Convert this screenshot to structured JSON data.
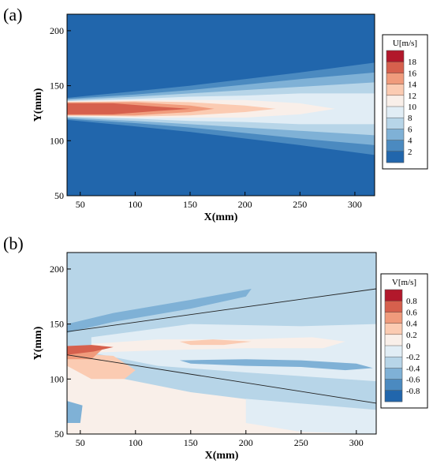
{
  "panels": [
    {
      "label": "(a)"
    },
    {
      "label": "(b)"
    }
  ],
  "chart_data": [
    {
      "type": "heatmap",
      "title": "",
      "xlabel": "X(mm)",
      "ylabel": "Y(mm)",
      "xlim": [
        38,
        318
      ],
      "ylim": [
        50,
        215
      ],
      "xticks": [
        50,
        100,
        150,
        200,
        250,
        300
      ],
      "yticks": [
        50,
        100,
        150,
        200
      ],
      "colorbar": {
        "title": "U[m/s]",
        "levels": [
          1,
          3,
          5,
          7,
          9,
          11,
          13,
          15,
          17,
          19
        ],
        "ticks": [
          18,
          16,
          14,
          12,
          10,
          8,
          6,
          4,
          2
        ],
        "colors": [
          "#2166ac",
          "#4b8ac0",
          "#7fb1d6",
          "#b7d5e8",
          "#e1edf5",
          "#f9efe9",
          "#fbcbb2",
          "#f09b7c",
          "#d6604d",
          "#b2182b"
        ]
      },
      "jet_centerline_y": 129,
      "contours": [
        {
          "value": 3,
          "x": [
            38,
            100,
            150,
            200,
            250,
            318
          ],
          "half_width": [
            10,
            16,
            21,
            27,
            33,
            42
          ]
        },
        {
          "value": 5,
          "x": [
            38,
            100,
            150,
            200,
            250,
            318
          ],
          "half_width": [
            9,
            13,
            17,
            22,
            27,
            33
          ]
        },
        {
          "value": 7,
          "x": [
            38,
            100,
            150,
            200,
            250,
            318
          ],
          "half_width": [
            8,
            11,
            14,
            17,
            20,
            24
          ]
        },
        {
          "value": 9,
          "x": [
            38,
            100,
            150,
            200,
            250,
            318
          ],
          "half_width": [
            7,
            9,
            11,
            12,
            14,
            14
          ]
        },
        {
          "value": 11,
          "x": [
            38,
            100,
            150,
            200,
            250,
            282
          ],
          "half_width": [
            7,
            8,
            8,
            8,
            5,
            0
          ]
        },
        {
          "value": 13,
          "x": [
            38,
            100,
            150,
            200,
            228
          ],
          "half_width": [
            6,
            7,
            6,
            3,
            0
          ]
        },
        {
          "value": 15,
          "x": [
            38,
            100,
            150,
            172
          ],
          "half_width": [
            6,
            6,
            3,
            0
          ]
        },
        {
          "value": 17,
          "x": [
            40,
            80,
            120,
            150
          ],
          "half_width": [
            5,
            5,
            2,
            0
          ]
        }
      ]
    },
    {
      "type": "heatmap",
      "title": "",
      "xlabel": "X(mm)",
      "ylabel": "Y(mm)",
      "xlim": [
        38,
        318
      ],
      "ylim": [
        50,
        215
      ],
      "xticks": [
        50,
        100,
        150,
        200,
        250,
        300
      ],
      "yticks": [
        50,
        100,
        150,
        200
      ],
      "colorbar": {
        "title": "V[m/s]",
        "levels": [
          -0.9,
          -0.7,
          -0.5,
          -0.3,
          -0.1,
          0.1,
          0.3,
          0.5,
          0.7,
          0.9
        ],
        "ticks": [
          0.8,
          0.6,
          0.4,
          0.2,
          0,
          -0.2,
          -0.4,
          -0.6,
          -0.8
        ],
        "colors": [
          "#2166ac",
          "#4b8ac0",
          "#7fb1d6",
          "#b7d5e8",
          "#e1edf5",
          "#f9efe9",
          "#fbcbb2",
          "#f09b7c",
          "#d6604d",
          "#b2182b"
        ]
      },
      "background_value": -0.2,
      "regions": [
        {
          "value": 0.2,
          "points": [
            [
              38,
              50
            ],
            [
              38,
              112
            ],
            [
              80,
              102
            ],
            [
              150,
              88
            ],
            [
              230,
              78
            ],
            [
              318,
              64
            ],
            [
              318,
              50
            ]
          ]
        },
        {
          "value": 0,
          "points": [
            [
              200,
              82
            ],
            [
              318,
              72
            ],
            [
              318,
              50
            ],
            [
              250,
              52
            ],
            [
              200,
              60
            ]
          ]
        },
        {
          "value": 0,
          "points": [
            [
              60,
              124
            ],
            [
              120,
              112
            ],
            [
              200,
              106
            ],
            [
              318,
              98
            ],
            [
              318,
              150
            ],
            [
              250,
              148
            ],
            [
              150,
              150
            ],
            [
              60,
              138
            ]
          ]
        },
        {
          "value": 0.2,
          "points": [
            [
              60,
              132
            ],
            [
              120,
              136
            ],
            [
              200,
              136
            ],
            [
              260,
              138
            ],
            [
              290,
              134
            ],
            [
              270,
              128
            ],
            [
              200,
              128
            ],
            [
              120,
              126
            ],
            [
              60,
              124
            ]
          ]
        },
        {
          "value": 0.4,
          "points": [
            [
              38,
              112
            ],
            [
              38,
              124
            ],
            [
              80,
              121
            ],
            [
              100,
              108
            ],
            [
              90,
              100
            ],
            [
              60,
              100
            ]
          ]
        },
        {
          "value": 0.4,
          "points": [
            [
              140,
              134
            ],
            [
              170,
              136
            ],
            [
              205,
              134
            ],
            [
              180,
              131
            ],
            [
              150,
              131
            ]
          ]
        },
        {
          "value": 0.6,
          "points": [
            [
              38,
              118
            ],
            [
              38,
              128
            ],
            [
              70,
              127
            ],
            [
              60,
              118
            ]
          ]
        },
        {
          "value": 0.8,
          "points": [
            [
              38,
              122
            ],
            [
              38,
              130
            ],
            [
              60,
              131
            ],
            [
              80,
              129
            ],
            [
              62,
              125
            ]
          ]
        },
        {
          "value": -0.4,
          "points": [
            [
              38,
              150
            ],
            [
              80,
              160
            ],
            [
              150,
              172
            ],
            [
              205,
              182
            ],
            [
              200,
              175
            ],
            [
              150,
              164
            ],
            [
              80,
              152
            ],
            [
              38,
              142
            ]
          ]
        },
        {
          "value": -0.4,
          "points": [
            [
              140,
              117
            ],
            [
              200,
              118
            ],
            [
              250,
              117
            ],
            [
              300,
              114
            ],
            [
              315,
              110
            ],
            [
              290,
              108
            ],
            [
              250,
              111
            ],
            [
              200,
              112
            ],
            [
              150,
              114
            ]
          ]
        },
        {
          "value": -0.4,
          "points": [
            [
              38,
              60
            ],
            [
              38,
              80
            ],
            [
              52,
              76
            ],
            [
              50,
              60
            ]
          ]
        }
      ],
      "guide_lines": [
        {
          "x": [
            38,
            318
          ],
          "y": [
            143,
            182
          ]
        },
        {
          "x": [
            38,
            318
          ],
          "y": [
            122,
            78
          ]
        }
      ]
    }
  ]
}
